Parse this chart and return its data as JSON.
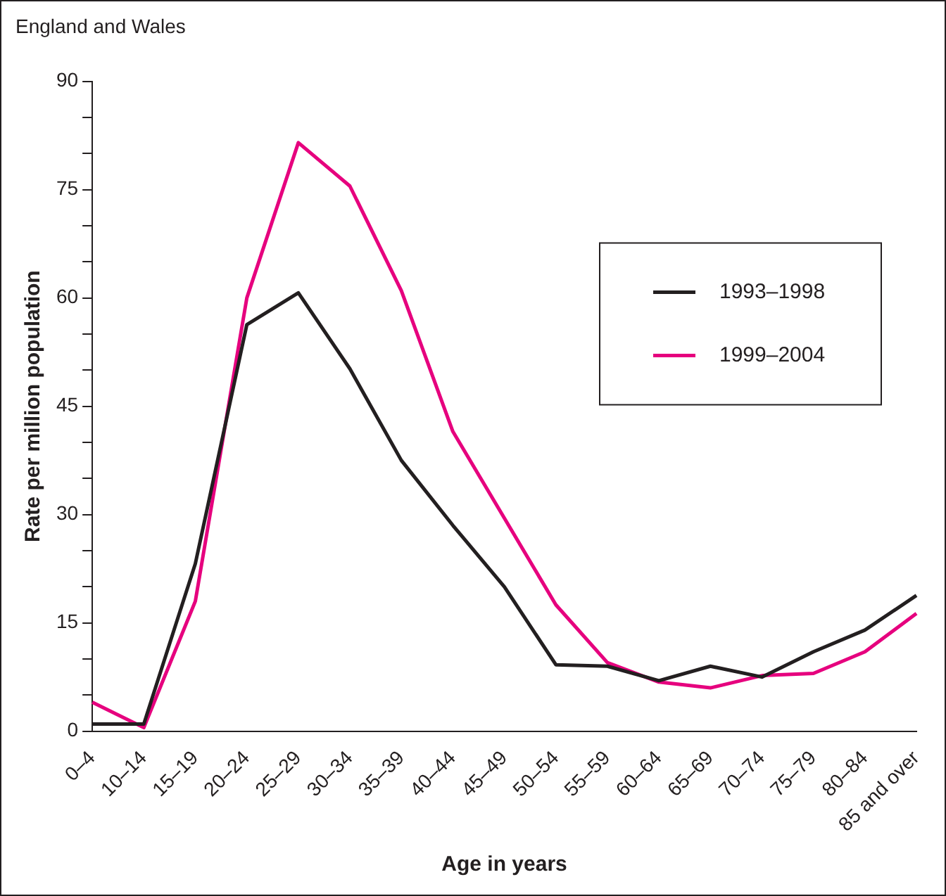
{
  "chart_data": {
    "type": "line",
    "title": "England and Wales",
    "xlabel": "Age in years",
    "ylabel": "Rate per million population",
    "categories": [
      "0–4",
      "10–14",
      "15–19",
      "20–24",
      "25–29",
      "30–34",
      "35–39",
      "40–44",
      "45–49",
      "50–54",
      "55–59",
      "60–64",
      "65–69",
      "70–74",
      "75–79",
      "80–84",
      "85 and over"
    ],
    "series": [
      {
        "name": "1993–1998",
        "color": "#231f20",
        "values": [
          1,
          1,
          23.2,
          56.3,
          60.7,
          50.2,
          37.5,
          28.5,
          20,
          9.2,
          9,
          7,
          9,
          7.5,
          11,
          14,
          18.8
        ]
      },
      {
        "name": "1999–2004",
        "color": "#e6007e",
        "values": [
          4,
          0.5,
          18,
          60,
          81.5,
          75.5,
          61,
          41.5,
          29.5,
          17.5,
          9.5,
          6.8,
          6,
          7.7,
          8,
          11,
          16.3
        ]
      }
    ],
    "ylim": [
      0,
      90
    ],
    "yticks": [
      0,
      {
        "value": 5,
        "label": null
      },
      {
        "value": 10,
        "label": null
      },
      15,
      {
        "value": 20,
        "label": null
      },
      {
        "value": 25,
        "label": null
      },
      30,
      {
        "value": 35,
        "label": null
      },
      {
        "value": 40,
        "label": null
      },
      45,
      {
        "value": 50,
        "label": null
      },
      {
        "value": 55,
        "label": null
      },
      60,
      {
        "value": 65,
        "label": null
      },
      {
        "value": 70,
        "label": null
      },
      75,
      {
        "value": 80,
        "label": null
      },
      {
        "value": 85,
        "label": null
      },
      90
    ],
    "grid": false,
    "legend": "right",
    "marker": "none",
    "line_style": "solid"
  }
}
